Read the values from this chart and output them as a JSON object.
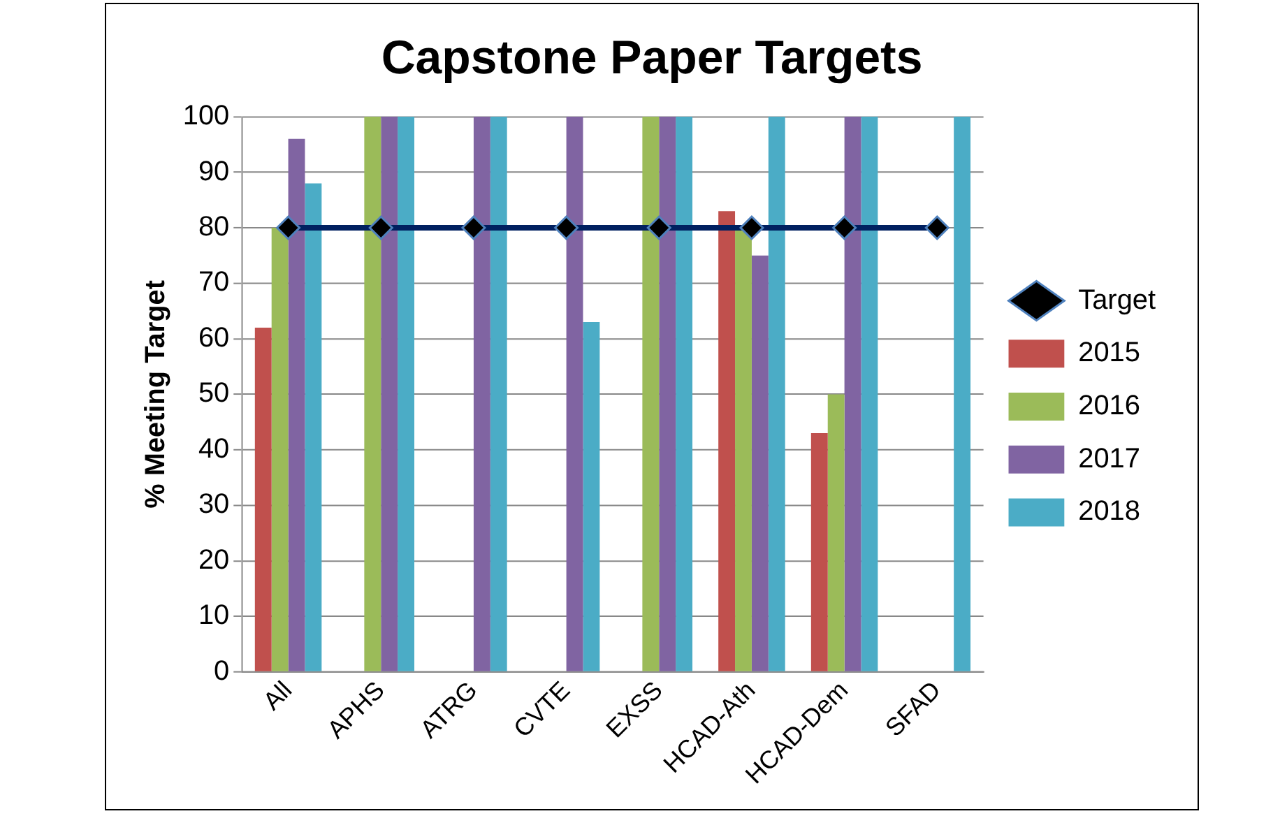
{
  "chart_data": {
    "type": "bar",
    "title": "Capstone Paper Targets",
    "ylabel": "% Meeting Target",
    "categories": [
      "All",
      "APHS",
      "ATRG",
      "CVTE",
      "EXSS",
      "HCAD-Ath",
      "HCAD-Dem",
      "SFAD"
    ],
    "series": [
      {
        "name": "2015",
        "color": "#c0504d",
        "values": [
          62,
          null,
          null,
          null,
          null,
          83,
          43,
          null
        ]
      },
      {
        "name": "2016",
        "color": "#9bbb59",
        "values": [
          80,
          100,
          null,
          null,
          100,
          80,
          50,
          null
        ]
      },
      {
        "name": "2017",
        "color": "#8064a2",
        "values": [
          96,
          100,
          100,
          100,
          100,
          75,
          100,
          null
        ]
      },
      {
        "name": "2018",
        "color": "#4bacc6",
        "values": [
          88,
          100,
          100,
          63,
          100,
          100,
          100,
          100
        ]
      },
      {
        "name": "Target",
        "type": "line",
        "color": "#002060",
        "marker": "diamond",
        "values": [
          80,
          80,
          80,
          80,
          80,
          80,
          80,
          80
        ]
      }
    ],
    "ylim": [
      0,
      100
    ],
    "yticks": [
      0,
      10,
      20,
      30,
      40,
      50,
      60,
      70,
      80,
      90,
      100
    ],
    "grid": "y",
    "legend": "right"
  }
}
